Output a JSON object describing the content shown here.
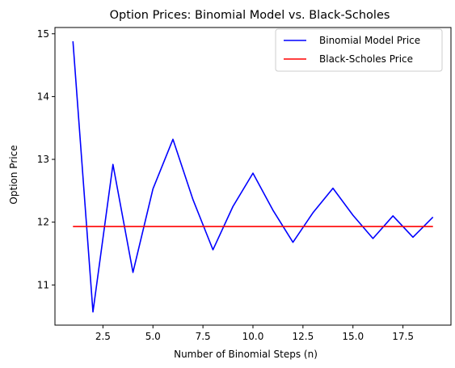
{
  "chart_data": {
    "type": "line",
    "title": "Option Prices: Binomial Model vs. Black-Scholes",
    "xlabel": "Number of Binomial Steps (n)",
    "ylabel": "Option Price",
    "xlim": [
      0.1,
      19.9
    ],
    "ylim": [
      10.36,
      15.1
    ],
    "x_ticks": [
      2.5,
      5.0,
      7.5,
      10.0,
      12.5,
      15.0,
      17.5
    ],
    "x_tick_labels": [
      "2.5",
      "5.0",
      "7.5",
      "10.0",
      "12.5",
      "15.0",
      "17.5"
    ],
    "y_ticks": [
      11,
      12,
      13,
      14,
      15
    ],
    "y_tick_labels": [
      "11",
      "12",
      "13",
      "14",
      "15"
    ],
    "grid": false,
    "legend_position": "top-right",
    "series": [
      {
        "name": "Binomial Model Price",
        "color": "#0000ff",
        "x": [
          1,
          2,
          3,
          4,
          5,
          6,
          7,
          8,
          9,
          10,
          11,
          12,
          13,
          14,
          15,
          16,
          17,
          18,
          19
        ],
        "y": [
          14.88,
          10.57,
          12.92,
          11.2,
          12.53,
          13.32,
          12.36,
          11.56,
          12.25,
          12.78,
          12.19,
          11.68,
          12.15,
          12.54,
          12.11,
          11.74,
          12.1,
          11.76,
          12.08
        ]
      },
      {
        "name": "Black-Scholes Price",
        "color": "#ff0000",
        "x": [
          1,
          2,
          3,
          4,
          5,
          6,
          7,
          8,
          9,
          10,
          11,
          12,
          13,
          14,
          15,
          16,
          17,
          18,
          19
        ],
        "y": [
          11.93,
          11.93,
          11.93,
          11.93,
          11.93,
          11.93,
          11.93,
          11.93,
          11.93,
          11.93,
          11.93,
          11.93,
          11.93,
          11.93,
          11.93,
          11.93,
          11.93,
          11.93,
          11.93
        ]
      }
    ]
  }
}
